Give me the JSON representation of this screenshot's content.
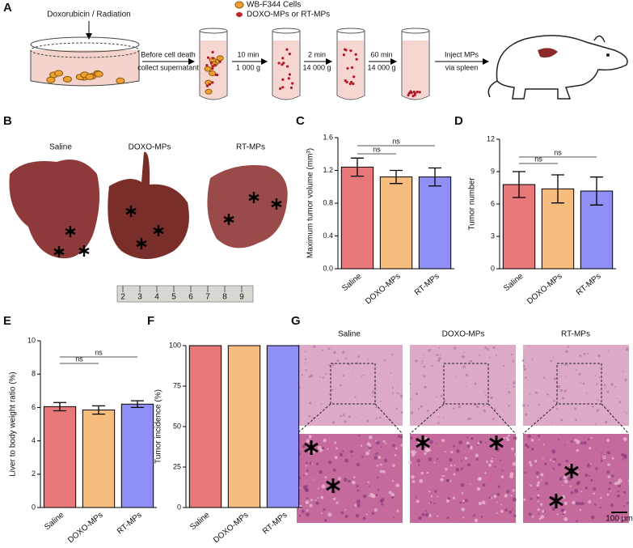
{
  "panel_labels": [
    "A",
    "B",
    "C",
    "D",
    "E",
    "F",
    "G"
  ],
  "schematic": {
    "treatment": "Doxorubicin / Radiation",
    "legend": [
      "WB-F344 Cells",
      "DOXO-MPs or RT-MPs"
    ],
    "step1": [
      "Before cell death",
      "collect supernatant"
    ],
    "spins": [
      {
        "time": "10 min",
        "force": "1 000 g"
      },
      {
        "time": "2 min",
        "force": "14 000 g"
      },
      {
        "time": "60 min",
        "force": "14 000 g"
      }
    ],
    "inject": [
      "Inject MPs",
      "via spleen"
    ]
  },
  "livers": {
    "groups": [
      "Saline",
      "DOXO-MPs",
      "RT-MPs"
    ],
    "ruler": [
      "2",
      "3",
      "4",
      "5",
      "6",
      "7",
      "8",
      "9"
    ]
  },
  "histology": {
    "groups": [
      "Saline",
      "DOXO-MPs",
      "RT-MPs"
    ],
    "scale_bar": "100 μm"
  },
  "chart_data": [
    {
      "type": "bar",
      "ylabel": "Maximum tumor volume (mm³)",
      "categories": [
        "Saline",
        "DOXO-MPs",
        "RT-MPs"
      ],
      "values": [
        1.24,
        1.12,
        1.12
      ],
      "errors": [
        0.11,
        0.08,
        0.11
      ],
      "colors": [
        "#e97878",
        "#f6bd7f",
        "#8f8ff6"
      ],
      "ylim": [
        0,
        1.6
      ],
      "yticks": [
        {
          "value": 0,
          "label": "0.0"
        },
        {
          "value": 0.4,
          "label": "0.4"
        },
        {
          "value": 0.8,
          "label": "0.8"
        },
        {
          "value": 1.2,
          "label": "1.2"
        },
        {
          "value": 1.6,
          "label": "1.6"
        }
      ],
      "annotations": [
        "ns",
        "ns"
      ]
    },
    {
      "type": "bar",
      "ylabel": "Tumor number",
      "categories": [
        "Saline",
        "DOXO-MPs",
        "RT-MPs"
      ],
      "values": [
        7.8,
        7.4,
        7.2
      ],
      "errors": [
        1.2,
        1.3,
        1.3
      ],
      "colors": [
        "#e97878",
        "#f6bd7f",
        "#8f8ff6"
      ],
      "ylim": [
        0,
        12
      ],
      "yticks": [
        0,
        3,
        6,
        9,
        12
      ],
      "annotations": [
        "ns",
        "ns"
      ]
    },
    {
      "type": "bar",
      "ylabel": "Liver to body weight ratio (%)",
      "categories": [
        "Saline",
        "DOXO-MPs",
        "RT-MPs"
      ],
      "values": [
        6.05,
        5.85,
        6.2
      ],
      "errors": [
        0.25,
        0.25,
        0.2
      ],
      "colors": [
        "#e97878",
        "#f6bd7f",
        "#8f8ff6"
      ],
      "ylim": [
        0,
        10
      ],
      "yticks": [
        0,
        2,
        4,
        6,
        8,
        10
      ],
      "annotations": [
        "ns",
        "ns"
      ]
    },
    {
      "type": "bar",
      "ylabel": "Tumor incidence (%)",
      "categories": [
        "Saline",
        "DOXO-MPs",
        "RT-MPs"
      ],
      "values": [
        100,
        100,
        100
      ],
      "colors": [
        "#e97878",
        "#f6bd7f",
        "#8f8ff6"
      ],
      "ylim": [
        0,
        100
      ],
      "yticks": [
        0,
        25,
        50,
        75,
        100
      ]
    }
  ]
}
